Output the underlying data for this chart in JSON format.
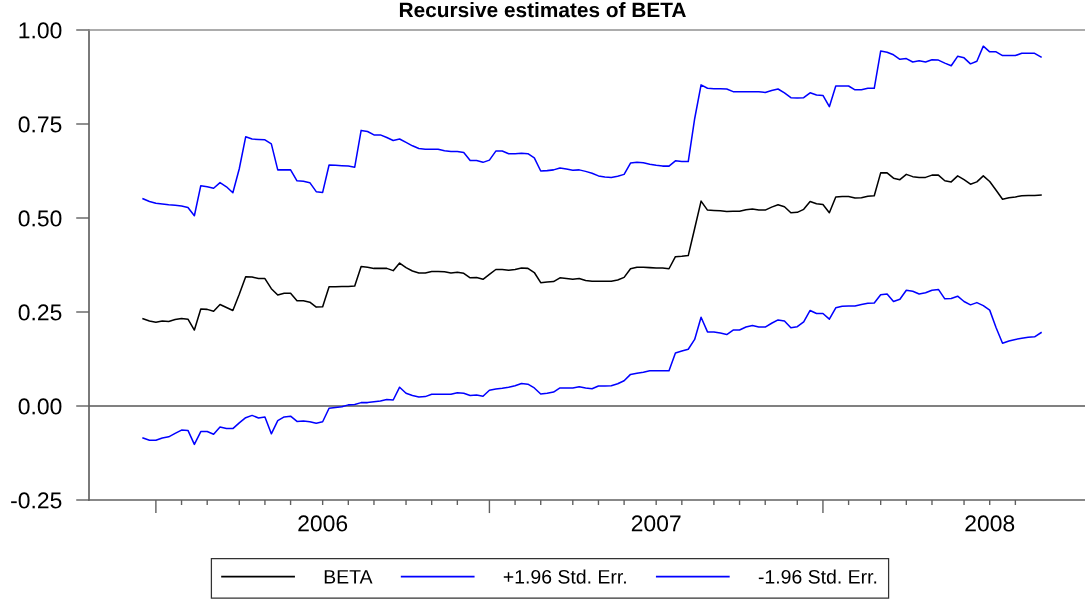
{
  "chart_data": {
    "type": "line",
    "title": "Recursive estimates of BETA",
    "x": [
      "2005-12-23",
      "2005-12-30",
      "2006-01-06",
      "2006-01-13",
      "2006-01-20",
      "2006-01-27",
      "2006-02-03",
      "2006-02-10",
      "2006-02-17",
      "2006-02-24",
      "2006-03-03",
      "2006-03-10",
      "2006-03-17",
      "2006-03-24",
      "2006-03-31",
      "2006-04-07",
      "2006-04-14",
      "2006-04-21",
      "2006-04-28",
      "2006-05-05",
      "2006-05-12",
      "2006-05-19",
      "2006-05-26",
      "2006-06-02",
      "2006-06-09",
      "2006-06-16",
      "2006-06-23",
      "2006-06-30",
      "2006-07-07",
      "2006-07-14",
      "2006-07-21",
      "2006-07-28",
      "2006-08-04",
      "2006-08-11",
      "2006-08-18",
      "2006-08-25",
      "2006-09-01",
      "2006-09-08",
      "2006-09-15",
      "2006-09-22",
      "2006-09-29",
      "2006-10-06",
      "2006-10-13",
      "2006-10-20",
      "2006-10-27",
      "2006-11-03",
      "2006-11-10",
      "2006-11-17",
      "2006-11-24",
      "2006-12-01",
      "2006-12-08",
      "2006-12-15",
      "2006-12-22",
      "2006-12-29",
      "2007-01-05",
      "2007-01-12",
      "2007-01-19",
      "2007-01-26",
      "2007-02-02",
      "2007-02-09",
      "2007-02-16",
      "2007-02-23",
      "2007-03-02",
      "2007-03-09",
      "2007-03-16",
      "2007-03-23",
      "2007-03-30",
      "2007-04-06",
      "2007-04-13",
      "2007-04-20",
      "2007-04-27",
      "2007-05-04",
      "2007-05-11",
      "2007-05-18",
      "2007-05-25",
      "2007-06-01",
      "2007-06-08",
      "2007-06-15",
      "2007-06-22",
      "2007-06-29",
      "2007-07-06",
      "2007-07-13",
      "2007-07-20",
      "2007-07-27",
      "2007-08-03",
      "2007-08-10",
      "2007-08-17",
      "2007-08-24",
      "2007-08-31",
      "2007-09-07",
      "2007-09-14",
      "2007-09-21",
      "2007-09-28",
      "2007-10-05",
      "2007-10-12",
      "2007-10-19",
      "2007-10-26",
      "2007-11-02",
      "2007-11-09",
      "2007-11-16",
      "2007-11-23",
      "2007-11-30",
      "2007-12-07",
      "2007-12-14",
      "2007-12-21",
      "2007-12-28",
      "2008-01-04",
      "2008-01-11",
      "2008-01-18",
      "2008-01-25",
      "2008-02-01",
      "2008-02-08",
      "2008-02-15",
      "2008-02-22",
      "2008-02-29",
      "2008-03-07",
      "2008-03-14",
      "2008-03-21",
      "2008-03-28",
      "2008-04-04",
      "2008-04-11",
      "2008-04-18",
      "2008-04-25",
      "2008-05-02",
      "2008-05-09",
      "2008-05-16",
      "2008-05-23",
      "2008-05-30",
      "2008-06-06",
      "2008-06-13",
      "2008-06-20",
      "2008-06-27",
      "2008-07-04",
      "2008-07-11",
      "2008-07-18",
      "2008-07-25",
      "2008-08-01",
      "2008-08-08",
      "2008-08-15",
      "2008-08-22",
      "2008-08-29"
    ],
    "series": [
      {
        "name": "BETA",
        "color": "#000000",
        "values": [
          0.232,
          0.226,
          0.223,
          0.226,
          0.225,
          0.23,
          0.233,
          0.231,
          0.202,
          0.258,
          0.257,
          0.252,
          0.27,
          0.262,
          0.254,
          0.297,
          0.344,
          0.343,
          0.339,
          0.339,
          0.312,
          0.295,
          0.3,
          0.3,
          0.28,
          0.28,
          0.276,
          0.263,
          0.264,
          0.317,
          0.317,
          0.318,
          0.318,
          0.319,
          0.371,
          0.369,
          0.366,
          0.366,
          0.366,
          0.36,
          0.38,
          0.368,
          0.359,
          0.354,
          0.354,
          0.358,
          0.358,
          0.357,
          0.354,
          0.356,
          0.353,
          0.341,
          0.342,
          0.337,
          0.35,
          0.363,
          0.363,
          0.361,
          0.363,
          0.367,
          0.366,
          0.355,
          0.328,
          0.33,
          0.331,
          0.341,
          0.339,
          0.337,
          0.339,
          0.334,
          0.332,
          0.332,
          0.332,
          0.332,
          0.335,
          0.342,
          0.365,
          0.369,
          0.369,
          0.368,
          0.367,
          0.367,
          0.365,
          0.397,
          0.398,
          0.4,
          0.472,
          0.545,
          0.521,
          0.52,
          0.519,
          0.517,
          0.518,
          0.518,
          0.522,
          0.524,
          0.521,
          0.521,
          0.529,
          0.535,
          0.53,
          0.514,
          0.515,
          0.523,
          0.544,
          0.538,
          0.536,
          0.514,
          0.556,
          0.557,
          0.557,
          0.553,
          0.554,
          0.558,
          0.559,
          0.62,
          0.62,
          0.606,
          0.602,
          0.616,
          0.61,
          0.608,
          0.608,
          0.614,
          0.614,
          0.599,
          0.596,
          0.612,
          0.602,
          0.59,
          0.596,
          0.612,
          0.597,
          0.574,
          0.55,
          0.554,
          0.556,
          0.559,
          0.56,
          0.56,
          0.561
        ]
      },
      {
        "name": "+1.96 Std. Err.",
        "color": "#0000ff",
        "values": [
          0.551,
          0.544,
          0.539,
          0.537,
          0.535,
          0.534,
          0.532,
          0.528,
          0.506,
          0.586,
          0.583,
          0.579,
          0.594,
          0.583,
          0.567,
          0.631,
          0.716,
          0.71,
          0.709,
          0.708,
          0.697,
          0.628,
          0.628,
          0.628,
          0.599,
          0.598,
          0.594,
          0.57,
          0.568,
          0.641,
          0.64,
          0.639,
          0.638,
          0.635,
          0.733,
          0.73,
          0.721,
          0.721,
          0.714,
          0.706,
          0.71,
          0.701,
          0.692,
          0.685,
          0.683,
          0.683,
          0.683,
          0.679,
          0.677,
          0.677,
          0.674,
          0.653,
          0.653,
          0.648,
          0.654,
          0.678,
          0.678,
          0.671,
          0.671,
          0.672,
          0.671,
          0.66,
          0.625,
          0.626,
          0.628,
          0.633,
          0.63,
          0.627,
          0.628,
          0.624,
          0.619,
          0.612,
          0.609,
          0.608,
          0.611,
          0.616,
          0.646,
          0.648,
          0.647,
          0.643,
          0.64,
          0.638,
          0.638,
          0.652,
          0.65,
          0.65,
          0.764,
          0.854,
          0.845,
          0.844,
          0.844,
          0.843,
          0.836,
          0.836,
          0.836,
          0.836,
          0.836,
          0.834,
          0.839,
          0.843,
          0.833,
          0.82,
          0.819,
          0.82,
          0.833,
          0.827,
          0.826,
          0.796,
          0.851,
          0.851,
          0.851,
          0.841,
          0.841,
          0.845,
          0.845,
          0.944,
          0.941,
          0.934,
          0.922,
          0.924,
          0.915,
          0.918,
          0.915,
          0.921,
          0.92,
          0.912,
          0.905,
          0.93,
          0.926,
          0.91,
          0.917,
          0.957,
          0.942,
          0.942,
          0.932,
          0.932,
          0.932,
          0.938,
          0.938,
          0.938,
          0.928
        ]
      },
      {
        "name": "-1.96 Std. Err.",
        "color": "#0000ff",
        "values": [
          -0.085,
          -0.091,
          -0.091,
          -0.085,
          -0.082,
          -0.073,
          -0.064,
          -0.065,
          -0.102,
          -0.068,
          -0.068,
          -0.075,
          -0.056,
          -0.06,
          -0.06,
          -0.045,
          -0.031,
          -0.025,
          -0.032,
          -0.029,
          -0.074,
          -0.039,
          -0.029,
          -0.027,
          -0.041,
          -0.04,
          -0.042,
          -0.046,
          -0.042,
          -0.006,
          -0.004,
          -0.002,
          0.003,
          0.004,
          0.009,
          0.009,
          0.011,
          0.013,
          0.017,
          0.016,
          0.05,
          0.034,
          0.028,
          0.024,
          0.025,
          0.031,
          0.031,
          0.031,
          0.031,
          0.035,
          0.034,
          0.028,
          0.029,
          0.026,
          0.042,
          0.045,
          0.047,
          0.05,
          0.054,
          0.06,
          0.058,
          0.048,
          0.032,
          0.034,
          0.037,
          0.048,
          0.048,
          0.048,
          0.051,
          0.048,
          0.046,
          0.053,
          0.053,
          0.054,
          0.059,
          0.067,
          0.084,
          0.087,
          0.09,
          0.094,
          0.094,
          0.094,
          0.094,
          0.141,
          0.146,
          0.151,
          0.177,
          0.236,
          0.197,
          0.197,
          0.194,
          0.19,
          0.202,
          0.202,
          0.21,
          0.214,
          0.21,
          0.21,
          0.22,
          0.229,
          0.226,
          0.208,
          0.211,
          0.224,
          0.254,
          0.246,
          0.246,
          0.231,
          0.261,
          0.265,
          0.266,
          0.266,
          0.27,
          0.273,
          0.274,
          0.296,
          0.298,
          0.278,
          0.284,
          0.308,
          0.305,
          0.298,
          0.301,
          0.308,
          0.31,
          0.285,
          0.286,
          0.292,
          0.278,
          0.269,
          0.275,
          0.267,
          0.255,
          0.208,
          0.167,
          0.173,
          0.177,
          0.18,
          0.183,
          0.184,
          0.195
        ]
      }
    ],
    "xlim": [
      "2005-10-25",
      "2008-10-16"
    ],
    "xticks": [
      {
        "value": "2006-01-06",
        "label": null
      },
      {
        "value": "2006-02-03",
        "label": null
      },
      {
        "value": "2006-03-03",
        "label": null
      },
      {
        "value": "2006-04-07",
        "label": null
      },
      {
        "value": "2006-05-05",
        "label": null
      },
      {
        "value": "2006-06-02",
        "label": null
      },
      {
        "value": "2006-07-07",
        "label": "2006"
      },
      {
        "value": "2006-08-04",
        "label": null
      },
      {
        "value": "2006-09-01",
        "label": null
      },
      {
        "value": "2006-10-06",
        "label": null
      },
      {
        "value": "2006-11-03",
        "label": null
      },
      {
        "value": "2006-12-01",
        "label": null
      },
      {
        "value": "2007-01-05",
        "label": null
      },
      {
        "value": "2007-02-02",
        "label": null
      },
      {
        "value": "2007-03-02",
        "label": null
      },
      {
        "value": "2007-04-06",
        "label": null
      },
      {
        "value": "2007-05-04",
        "label": null
      },
      {
        "value": "2007-06-01",
        "label": null
      },
      {
        "value": "2007-07-06",
        "label": "2007"
      },
      {
        "value": "2007-08-03",
        "label": null
      },
      {
        "value": "2007-09-07",
        "label": null
      },
      {
        "value": "2007-10-05",
        "label": null
      },
      {
        "value": "2007-11-02",
        "label": null
      },
      {
        "value": "2007-12-07",
        "label": null
      },
      {
        "value": "2008-01-04",
        "label": null
      },
      {
        "value": "2008-02-01",
        "label": null
      },
      {
        "value": "2008-03-07",
        "label": null
      },
      {
        "value": "2008-04-04",
        "label": null
      },
      {
        "value": "2008-05-02",
        "label": null
      },
      {
        "value": "2008-06-06",
        "label": null
      },
      {
        "value": "2008-07-04",
        "label": "2008"
      },
      {
        "value": "2008-08-01",
        "label": null
      }
    ],
    "ylim": [
      -0.25,
      1.0
    ],
    "yticks": [
      {
        "value": -0.25,
        "label": "-0.25"
      },
      {
        "value": 0,
        "label": "0.00"
      },
      0.25,
      {
        "value": 0.5,
        "label": "0.50"
      },
      0.75,
      {
        "value": 1.0,
        "label": "1.00"
      }
    ],
    "ref_lines": [
      {
        "axis": "y",
        "value": 0,
        "color": "#808080"
      }
    ],
    "legend": "bottom",
    "line_style": "solid"
  }
}
